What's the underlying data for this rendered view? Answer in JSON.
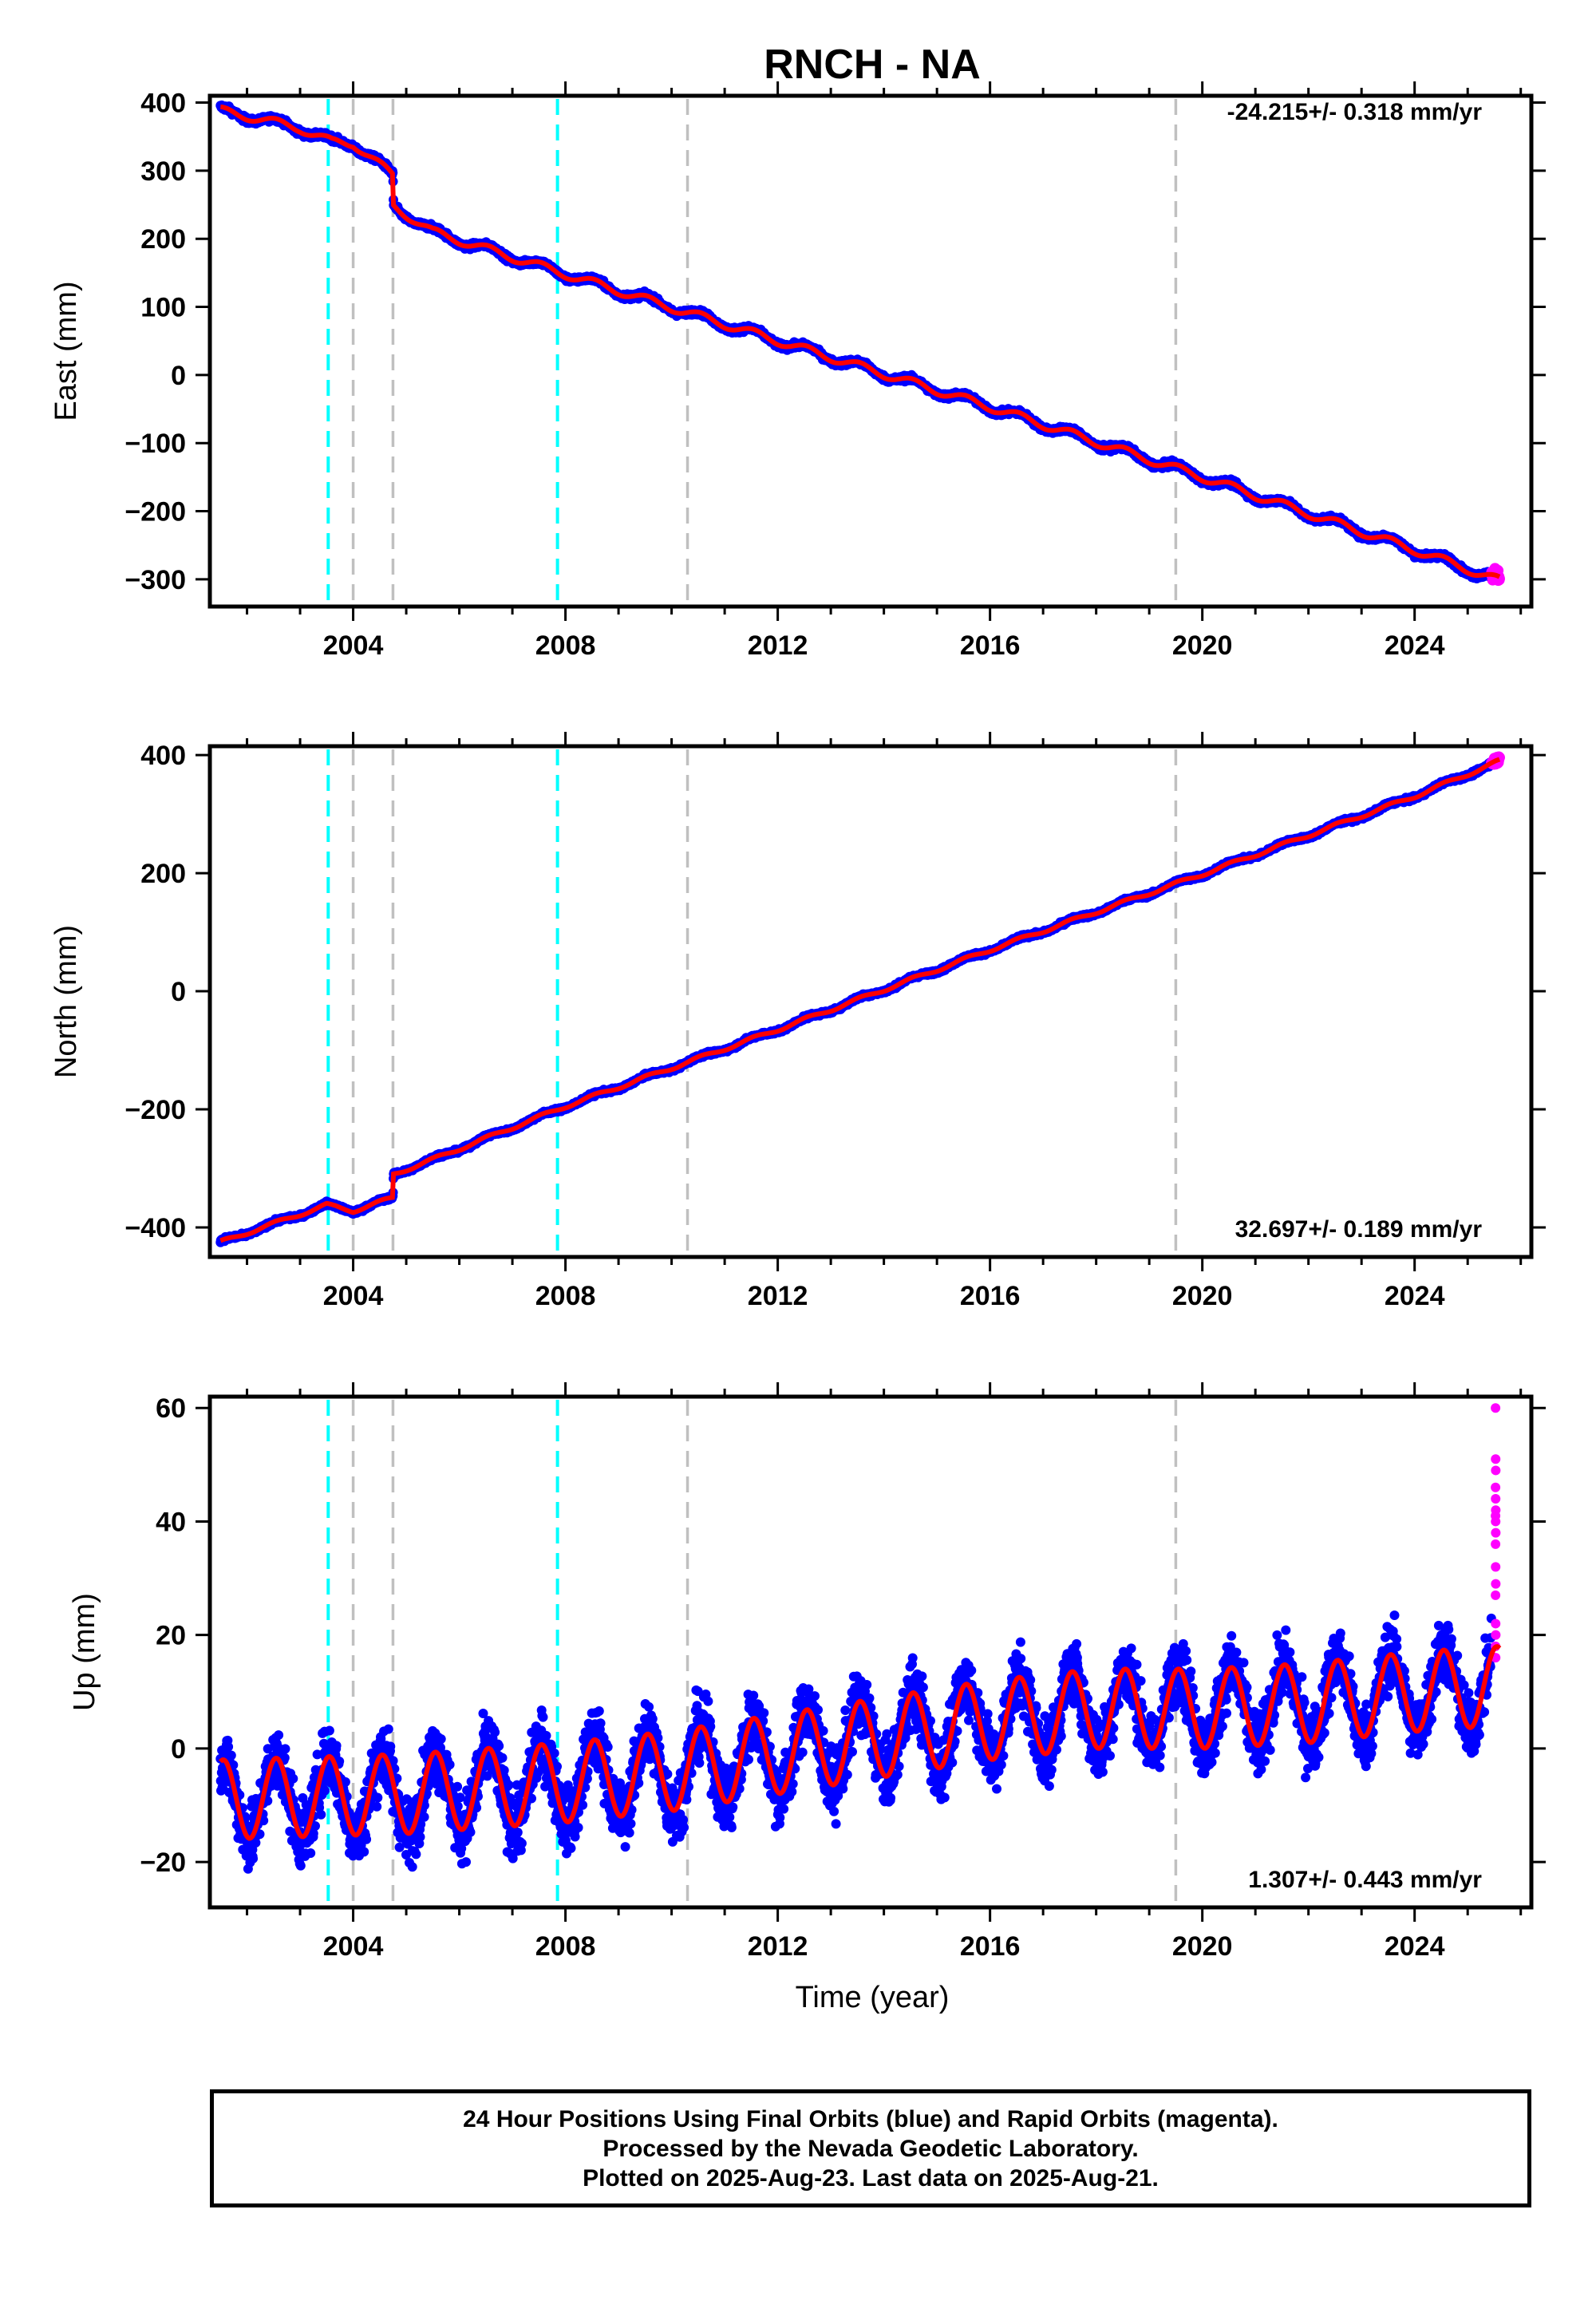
{
  "title": "RNCH - NA",
  "xlabel": "Time (year)",
  "x_ticks": [
    2004,
    2008,
    2012,
    2016,
    2020,
    2024
  ],
  "footer": {
    "line1": "24 Hour Positions Using Final Orbits (blue) and Rapid Orbits (magenta).",
    "line2": "Processed by the Nevada Geodetic Laboratory.",
    "line3": "Plotted on 2025-Aug-23. Last data on 2025-Aug-21."
  },
  "colors": {
    "final": "#0000ff",
    "rapid": "#ff00ff",
    "model": "#ff0000",
    "equipment_change": "#00ffff",
    "other_event": "#c0c0c0"
  },
  "chart_data": [
    {
      "type": "scatter",
      "ylabel": "East (mm)",
      "xlim": [
        2001.3,
        2026.2
      ],
      "ylim": [
        -340,
        410
      ],
      "yticks": [
        400,
        300,
        200,
        100,
        0,
        -100,
        -200,
        -300
      ],
      "rate": "-24.215+/- 0.318 mm/yr",
      "rate_position": "top-right",
      "start": 2001.5,
      "end": 2025.6,
      "rapid_start": 2025.45,
      "model_knots": [
        [
          2001.5,
          388
        ],
        [
          2002.3,
          375
        ],
        [
          2003.0,
          362
        ],
        [
          2003.6,
          342
        ],
        [
          2004.0,
          340
        ],
        [
          2004.75,
          293
        ],
        [
          2004.76,
          248
        ],
        [
          2005.5,
          210
        ],
        [
          2008.0,
          148
        ],
        [
          2012.0,
          50
        ],
        [
          2016.0,
          -47
        ],
        [
          2020.0,
          -150
        ],
        [
          2024.0,
          -257
        ],
        [
          2025.6,
          -302
        ]
      ],
      "seasonal_amplitude": 6,
      "noise": 4,
      "series": [
        {
          "name": "Final Orbits",
          "color": "#0000ff"
        },
        {
          "name": "Rapid Orbits",
          "color": "#ff00ff"
        }
      ],
      "events": [
        {
          "x": 2003.53,
          "kind": "equipment",
          "color": "#00ffff"
        },
        {
          "x": 2004.0,
          "kind": "other",
          "color": "#c0c0c0"
        },
        {
          "x": 2004.75,
          "kind": "other",
          "color": "#c0c0c0"
        },
        {
          "x": 2007.85,
          "kind": "equipment",
          "color": "#00ffff"
        },
        {
          "x": 2010.3,
          "kind": "other",
          "color": "#c0c0c0"
        },
        {
          "x": 2019.5,
          "kind": "other",
          "color": "#c0c0c0"
        }
      ]
    },
    {
      "type": "scatter",
      "ylabel": "North (mm)",
      "xlim": [
        2001.3,
        2026.2
      ],
      "ylim": [
        -450,
        415
      ],
      "yticks": [
        400,
        200,
        0,
        -200,
        -400
      ],
      "rate": "32.697+/- 0.189 mm/yr",
      "rate_position": "bottom-right",
      "start": 2001.5,
      "end": 2025.6,
      "rapid_start": 2025.45,
      "model_knots": [
        [
          2001.5,
          -425
        ],
        [
          2003.5,
          -362
        ],
        [
          2004.0,
          -372
        ],
        [
          2004.75,
          -350
        ],
        [
          2004.76,
          -310
        ],
        [
          2005.5,
          -285
        ],
        [
          2008.0,
          -195
        ],
        [
          2012.0,
          -65
        ],
        [
          2016.0,
          70
        ],
        [
          2020.0,
          198
        ],
        [
          2024.0,
          330
        ],
        [
          2025.6,
          390
        ]
      ],
      "seasonal_amplitude": 3,
      "noise": 3,
      "series": [
        {
          "name": "Final Orbits",
          "color": "#0000ff"
        },
        {
          "name": "Rapid Orbits",
          "color": "#ff00ff"
        }
      ],
      "events": [
        {
          "x": 2003.53,
          "kind": "equipment",
          "color": "#00ffff"
        },
        {
          "x": 2004.0,
          "kind": "other",
          "color": "#c0c0c0"
        },
        {
          "x": 2004.75,
          "kind": "other",
          "color": "#c0c0c0"
        },
        {
          "x": 2007.85,
          "kind": "equipment",
          "color": "#00ffff"
        },
        {
          "x": 2010.3,
          "kind": "other",
          "color": "#c0c0c0"
        },
        {
          "x": 2019.5,
          "kind": "other",
          "color": "#c0c0c0"
        }
      ]
    },
    {
      "type": "scatter",
      "ylabel": "Up (mm)",
      "xlim": [
        2001.3,
        2026.2
      ],
      "ylim": [
        -28,
        62
      ],
      "yticks": [
        60,
        40,
        20,
        0,
        -20
      ],
      "rate": "1.307+/- 0.443 mm/yr",
      "rate_position": "bottom-right",
      "start": 2001.5,
      "end": 2025.6,
      "rapid_start": 2025.45,
      "model_knots": [
        [
          2001.5,
          -9
        ],
        [
          2005.0,
          -8
        ],
        [
          2008.0,
          -6
        ],
        [
          2010.0,
          -4
        ],
        [
          2012.0,
          -1
        ],
        [
          2014.0,
          2
        ],
        [
          2016.0,
          5
        ],
        [
          2018.0,
          7
        ],
        [
          2020.0,
          7
        ],
        [
          2022.0,
          8
        ],
        [
          2024.0,
          10
        ],
        [
          2025.6,
          11
        ]
      ],
      "seasonal_amplitude": 7,
      "noise": 5.5,
      "rapid_values": [
        60,
        51,
        49,
        46,
        44,
        42,
        41,
        40,
        38,
        36,
        32,
        29,
        27,
        22,
        20,
        18,
        16
      ],
      "series": [
        {
          "name": "Final Orbits",
          "color": "#0000ff"
        },
        {
          "name": "Rapid Orbits",
          "color": "#ff00ff"
        }
      ],
      "events": [
        {
          "x": 2003.53,
          "kind": "equipment",
          "color": "#00ffff"
        },
        {
          "x": 2004.0,
          "kind": "other",
          "color": "#c0c0c0"
        },
        {
          "x": 2004.75,
          "kind": "other",
          "color": "#c0c0c0"
        },
        {
          "x": 2007.85,
          "kind": "equipment",
          "color": "#00ffff"
        },
        {
          "x": 2010.3,
          "kind": "other",
          "color": "#c0c0c0"
        },
        {
          "x": 2019.5,
          "kind": "other",
          "color": "#c0c0c0"
        }
      ]
    }
  ]
}
